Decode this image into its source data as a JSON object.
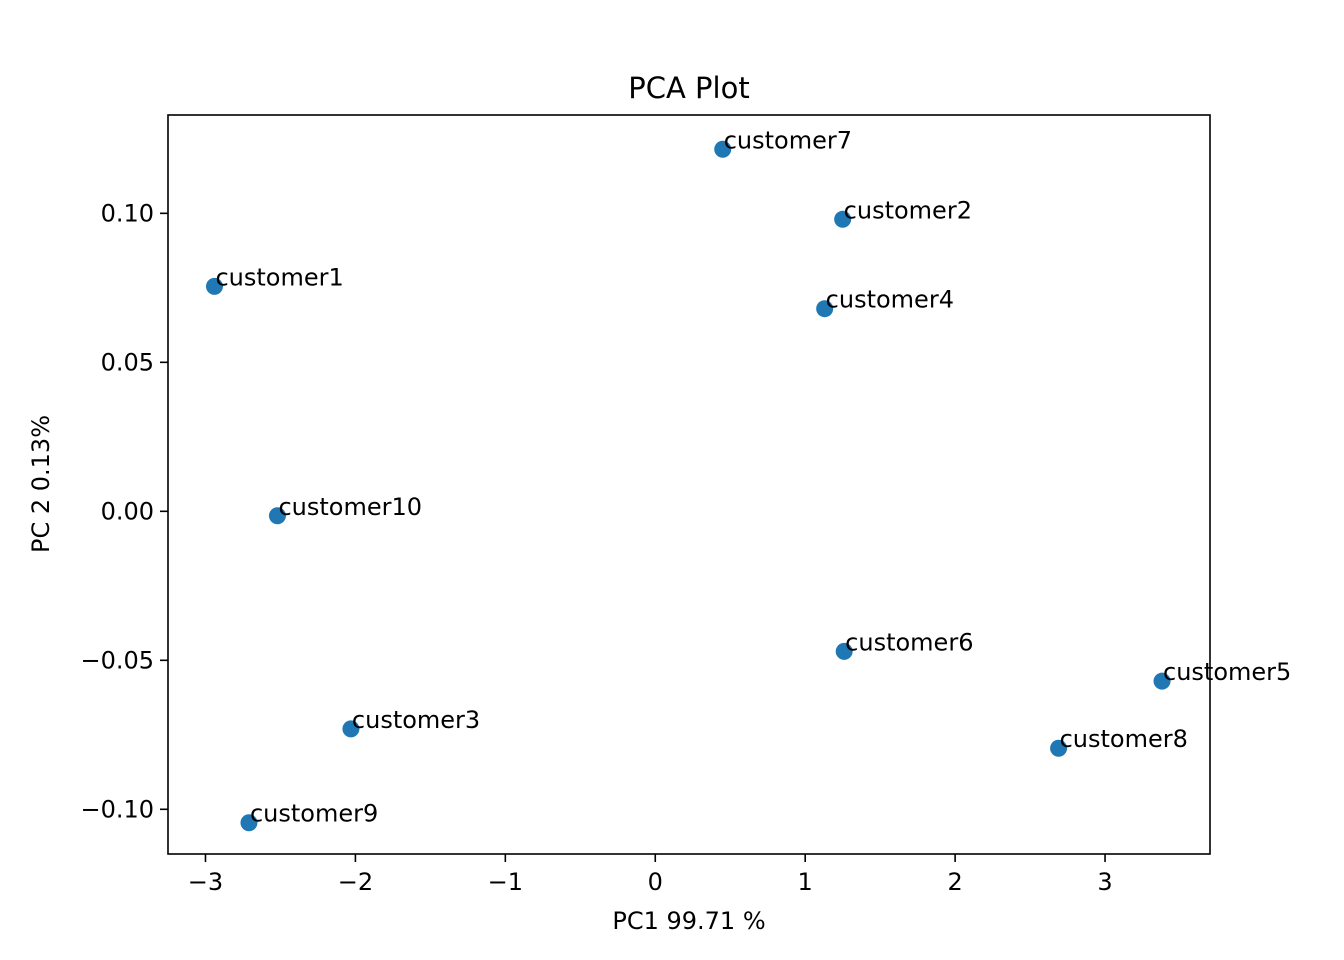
{
  "chart_data": {
    "type": "scatter",
    "title": "PCA Plot",
    "xlabel": "PC1 99.71 %",
    "ylabel": "PC 2 0.13%",
    "xlim": [
      -3.25,
      3.7
    ],
    "ylim": [
      -0.115,
      0.133
    ],
    "xticks": [
      -3,
      -2,
      -1,
      0,
      1,
      2,
      3
    ],
    "xtick_labels": [
      "−3",
      "−2",
      "−1",
      "0",
      "1",
      "2",
      "3"
    ],
    "yticks": [
      -0.1,
      -0.05,
      0.0,
      0.05,
      0.1
    ],
    "ytick_labels": [
      "−0.10",
      "−0.05",
      "0.00",
      "0.05",
      "0.10"
    ],
    "grid": false,
    "marker_color": "#1f77b4",
    "points": [
      {
        "label": "customer1",
        "x": -2.94,
        "y": 0.0755
      },
      {
        "label": "customer2",
        "x": 1.25,
        "y": 0.098
      },
      {
        "label": "customer3",
        "x": -2.03,
        "y": -0.073
      },
      {
        "label": "customer4",
        "x": 1.13,
        "y": 0.068
      },
      {
        "label": "customer5",
        "x": 3.38,
        "y": -0.057
      },
      {
        "label": "customer6",
        "x": 1.26,
        "y": -0.047
      },
      {
        "label": "customer7",
        "x": 0.45,
        "y": 0.1215
      },
      {
        "label": "customer8",
        "x": 2.69,
        "y": -0.0795
      },
      {
        "label": "customer9",
        "x": -2.71,
        "y": -0.1045
      },
      {
        "label": "customer10",
        "x": -2.52,
        "y": -0.0015
      }
    ]
  }
}
